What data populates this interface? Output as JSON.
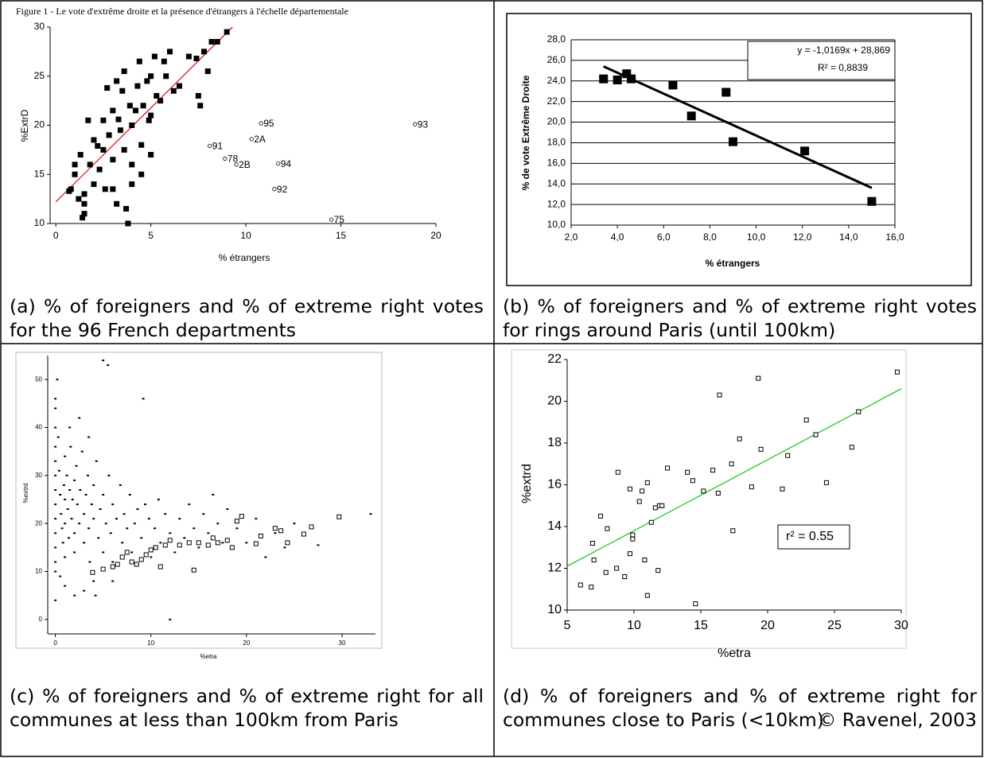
{
  "chart_data": [
    {
      "type": "scatter",
      "title": "Figure 1 - Le vote d'extrême droite et la présence d'étrangers à l'échelle départementale",
      "x_label": "% étrangers",
      "y_label": "%ExtrD",
      "xlim": [
        -0.3,
        20
      ],
      "ylim": [
        10,
        30
      ],
      "xticks": [
        0,
        5,
        10,
        15,
        20
      ],
      "yticks": [
        10,
        15,
        20,
        25,
        30
      ],
      "grid": false,
      "series": [
        {
          "marker": "square",
          "color": "#000000",
          "x": [
            0.8,
            1,
            1,
            1.2,
            1.3,
            1.5,
            1.5,
            1.7,
            1.8,
            2,
            2,
            2.3,
            2.5,
            2.5,
            2.6,
            2.7,
            2.8,
            3,
            3,
            3,
            3.2,
            3.2,
            3.4,
            3.5,
            3.6,
            3.6,
            3.7,
            3.8,
            3.9,
            4,
            4,
            4,
            4.2,
            4.3,
            4.4,
            4.5,
            4.5,
            4.6,
            4.8,
            4.9,
            5,
            5,
            5,
            5.2,
            5.3,
            5.5,
            5.7,
            5.8,
            6,
            6.2,
            6.5,
            7,
            7.4,
            7.5,
            7.6,
            7.8,
            8,
            8.2,
            8.5,
            9,
            1.5,
            1.4,
            0.7,
            2.2,
            3.3
          ],
          "y": [
            13.5,
            15,
            16,
            12.5,
            17,
            13,
            11,
            20.5,
            16,
            18.5,
            14,
            15.5,
            20.5,
            17.5,
            13.5,
            23.8,
            19,
            13.5,
            21.5,
            16.5,
            24.5,
            12,
            19.5,
            23.5,
            25.5,
            17.5,
            11.5,
            10,
            22,
            20,
            16,
            14,
            21.5,
            24,
            26.5,
            18,
            15,
            22,
            24.5,
            20.5,
            17,
            21,
            25,
            27,
            23,
            22.5,
            26.5,
            25,
            27.5,
            23.5,
            24,
            27,
            26.8,
            23,
            22,
            27.5,
            25.5,
            28.5,
            28.5,
            29.5,
            12,
            10.6,
            13.3,
            17.9,
            20.6
          ]
        },
        {
          "marker": "open-circle",
          "color": "#000000",
          "x": [
            10.8,
            10.3,
            8.1,
            8.9,
            9.5,
            11.7,
            11.5,
            14.5,
            18.9
          ],
          "y": [
            20.2,
            18.6,
            17.9,
            16.6,
            16.0,
            16.1,
            13.5,
            10.4,
            20.1
          ],
          "labels": [
            "95",
            "2A",
            "91",
            "78",
            "2B",
            "94",
            "92",
            "75",
            "93"
          ]
        }
      ],
      "trend_line": {
        "x": [
          0,
          9.3
        ],
        "y": [
          12.2,
          30
        ],
        "color": "#d62020"
      },
      "caption": "(a) % of foreigners and % of extreme right votes for the 96 French departments"
    },
    {
      "type": "scatter",
      "x_label": "% étrangers",
      "y_label": "% de vote Extrême Droite",
      "xlim": [
        2,
        16
      ],
      "ylim": [
        10,
        28
      ],
      "xticks": [
        {
          "value": 2,
          "label": "2,0"
        },
        {
          "value": 4,
          "label": "4,0"
        },
        {
          "value": 6,
          "label": "6,0"
        },
        {
          "value": 8,
          "label": "8,0"
        },
        {
          "value": 10,
          "label": "10,0"
        },
        {
          "value": 12,
          "label": "12,0"
        },
        {
          "value": 14,
          "label": "14,0"
        },
        {
          "value": 16,
          "label": "16,0"
        }
      ],
      "yticks": [
        {
          "value": 10,
          "label": "10,0"
        },
        {
          "value": 12,
          "label": "12,0"
        },
        {
          "value": 14,
          "label": "14,0"
        },
        {
          "value": 16,
          "label": "16,0"
        },
        {
          "value": 18,
          "label": "18,0"
        },
        {
          "value": 20,
          "label": "20,0"
        },
        {
          "value": 22,
          "label": "22,0"
        },
        {
          "value": 24,
          "label": "24,0"
        },
        {
          "value": 26,
          "label": "26,0"
        },
        {
          "value": 28,
          "label": "28,0"
        }
      ],
      "grid": true,
      "series": [
        {
          "marker": "big-square",
          "color": "#000000",
          "x": [
            3.4,
            4.0,
            4.4,
            4.6,
            6.4,
            7.2,
            8.7,
            9.0,
            12.1,
            15.0
          ],
          "y": [
            24.2,
            24.1,
            24.7,
            24.2,
            23.6,
            20.6,
            22.9,
            18.1,
            17.2,
            12.3
          ]
        }
      ],
      "trend_line": {
        "x": [
          3.4,
          15
        ],
        "y": [
          25.41,
          13.61
        ],
        "color": "#000000",
        "equation": "y = -1,0169x + 28,869",
        "r2": "R² = 0,8839"
      },
      "caption": "(b) % of foreigners and % of extreme right votes for rings around Paris (until 100km)"
    },
    {
      "type": "scatter",
      "x_label": "%etra",
      "y_label": "%extrd",
      "xlim": [
        -0.8,
        33.5
      ],
      "ylim": [
        -3,
        55
      ],
      "xticks": [
        0,
        10,
        20,
        30
      ],
      "yticks": [
        0,
        10,
        20,
        30,
        40,
        50
      ],
      "grid": false,
      "series": [
        {
          "marker": "dot",
          "color": "#000000",
          "x": [
            0,
            0,
            0,
            0,
            0,
            0,
            0,
            0,
            0,
            0,
            0,
            0,
            0,
            0,
            0.3,
            0.4,
            0.5,
            0.6,
            0.7,
            0.8,
            0.9,
            1,
            1,
            1,
            1,
            1.2,
            1.3,
            1.4,
            1.5,
            1.6,
            1.7,
            1.8,
            2,
            2,
            2,
            2.2,
            2.3,
            2.5,
            2.6,
            2.8,
            3,
            3,
            3.2,
            3.4,
            3.5,
            3.6,
            3.8,
            4,
            4,
            4,
            4.3,
            4.5,
            4.7,
            5,
            5,
            5,
            5.3,
            5.5,
            5.6,
            5.8,
            6,
            6,
            6.4,
            6.8,
            7,
            7.2,
            7.5,
            7.8,
            8,
            8.3,
            8.6,
            9,
            9.2,
            9.4,
            9.8,
            10,
            10.4,
            10.8,
            11,
            11.5,
            12,
            12,
            12.5,
            13,
            13.5,
            14,
            14.5,
            15,
            15.5,
            16,
            16.5,
            17,
            17.5,
            18,
            19,
            20,
            21,
            22,
            23,
            24,
            25,
            26,
            27.5,
            33,
            0.2,
            0.5,
            1,
            2,
            3,
            4.2,
            6,
            1.5,
            2.5,
            3.5
          ],
          "y": [
            46,
            44,
            40,
            36,
            33,
            30,
            27,
            24,
            21,
            18,
            15,
            12,
            10,
            4,
            38,
            31,
            26,
            22,
            19,
            16,
            28,
            34,
            25,
            20,
            13,
            30,
            23,
            17,
            27,
            36,
            21,
            25,
            29,
            18,
            14,
            32,
            24,
            20,
            27,
            35,
            22,
            16,
            26,
            30,
            19,
            12,
            24,
            28,
            21,
            8,
            33,
            17,
            23,
            54,
            26,
            14,
            20,
            53,
            30,
            18,
            24,
            12,
            21,
            28,
            16,
            22,
            19,
            26,
            14,
            20,
            23,
            17,
            46,
            24,
            21,
            13,
            19,
            25,
            16,
            22,
            0,
            18,
            14,
            21,
            17,
            24,
            19,
            15,
            22,
            18,
            26,
            20,
            16,
            23,
            19,
            16,
            21,
            13,
            18,
            15,
            20,
            18,
            15.5,
            22,
            50,
            9,
            7,
            5,
            6,
            5,
            8,
            40,
            42,
            38
          ]
        },
        {
          "marker": "open-square",
          "color": "#000000",
          "x": [
            3.9,
            5,
            6,
            6.5,
            7,
            7.5,
            8,
            8.5,
            9,
            9.5,
            10,
            10.5,
            11,
            11.5,
            12,
            13,
            14,
            14.5,
            15,
            16,
            16.5,
            17,
            18,
            18.5,
            19,
            19.5,
            21,
            21.5,
            23,
            23.6,
            24.3,
            26,
            26.8,
            29.7
          ],
          "y": [
            9.8,
            10.5,
            11,
            11.5,
            13,
            14,
            12,
            11.5,
            12.5,
            13.5,
            14.5,
            15,
            11,
            15.5,
            16.5,
            15.5,
            16,
            10.3,
            16,
            15.5,
            17,
            16,
            16.5,
            15,
            20.5,
            21.5,
            15.8,
            17.4,
            19,
            18.5,
            16,
            17.8,
            19.3,
            21.4
          ]
        }
      ],
      "caption": "(c) % of foreigners and % of extreme right for all communes at less than 100km from Paris"
    },
    {
      "type": "scatter",
      "x_label": "%etra",
      "y_label": "%extrd",
      "xlim": [
        5,
        30
      ],
      "ylim": [
        10,
        22
      ],
      "xticks": [
        5,
        10,
        15,
        20,
        25,
        30
      ],
      "yticks": [
        10,
        12,
        14,
        16,
        18,
        20,
        22
      ],
      "grid": false,
      "series": [
        {
          "marker": "open-square",
          "color": "#000000",
          "x": [
            6.0,
            6.8,
            6.9,
            7.0,
            7.5,
            7.9,
            8.0,
            8.7,
            8.8,
            9.3,
            9.7,
            9.7,
            9.9,
            9.9,
            10.4,
            10.6,
            10.8,
            11.0,
            11.0,
            11.3,
            11.6,
            11.8,
            11.9,
            12.1,
            12.5,
            14.0,
            14.4,
            14.6,
            15.2,
            15.9,
            16.3,
            16.4,
            17.3,
            17.4,
            17.9,
            18.8,
            19.3,
            19.5,
            21.1,
            21.5,
            22.9,
            23.6,
            24.4,
            26.3,
            26.8,
            29.7
          ],
          "y": [
            11.2,
            11.1,
            13.2,
            12.4,
            14.5,
            11.8,
            13.9,
            12.0,
            16.6,
            11.6,
            12.7,
            15.8,
            13.4,
            13.6,
            15.2,
            15.7,
            12.4,
            16.1,
            10.7,
            14.2,
            14.9,
            11.9,
            15.0,
            15.0,
            16.8,
            16.6,
            16.2,
            10.3,
            15.7,
            16.7,
            15.6,
            20.3,
            17.0,
            13.8,
            18.2,
            15.9,
            21.1,
            17.7,
            15.8,
            17.4,
            19.1,
            18.4,
            16.1,
            17.8,
            19.5,
            21.4
          ]
        }
      ],
      "trend_line": {
        "x": [
          5,
          30
        ],
        "y": [
          12.1,
          20.6
        ],
        "color": "#22cc22",
        "r2": "r² = 0.55"
      },
      "caption": "(d) % of foreigners and % of extreme right for communes close to Paris (<10km)"
    }
  ],
  "credit": "© Ravenel, 2003"
}
